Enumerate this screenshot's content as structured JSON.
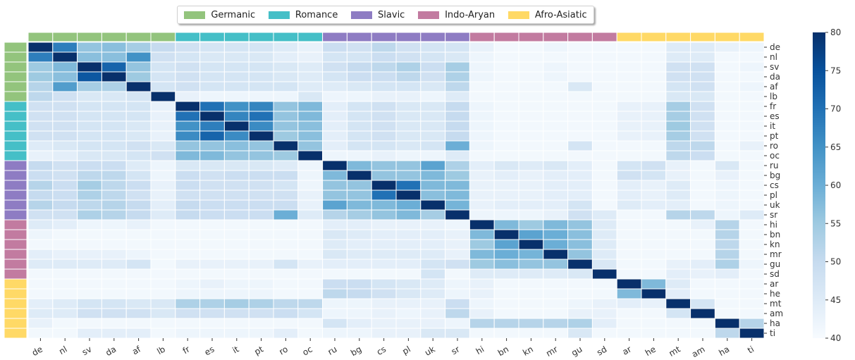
{
  "chart_data": {
    "type": "heatmap",
    "languages": [
      "de",
      "nl",
      "sv",
      "da",
      "af",
      "lb",
      "fr",
      "es",
      "it",
      "pt",
      "ro",
      "oc",
      "ru",
      "bg",
      "cs",
      "pl",
      "uk",
      "sr",
      "hi",
      "bn",
      "kn",
      "mr",
      "gu",
      "sd",
      "ar",
      "he",
      "mt",
      "am",
      "ha",
      "ti"
    ],
    "families": [
      {
        "name": "Germanic",
        "color": "#93c47d",
        "members": [
          "de",
          "nl",
          "sv",
          "da",
          "af",
          "lb"
        ]
      },
      {
        "name": "Romance",
        "color": "#45bfc7",
        "members": [
          "fr",
          "es",
          "it",
          "pt",
          "ro",
          "oc"
        ]
      },
      {
        "name": "Slavic",
        "color": "#8e7cc3",
        "members": [
          "ru",
          "bg",
          "cs",
          "pl",
          "uk",
          "sr"
        ]
      },
      {
        "name": "Indo-Aryan",
        "color": "#c27ba0",
        "members": [
          "hi",
          "bn",
          "kn",
          "mr",
          "gu",
          "sd"
        ]
      },
      {
        "name": "Afro-Asiatic",
        "color": "#ffd966",
        "members": [
          "ar",
          "he",
          "mt",
          "am",
          "ha",
          "ti"
        ]
      }
    ],
    "colorbar": {
      "min": 40,
      "max": 80,
      "ticks": [
        "40",
        "45",
        "50",
        "55",
        "60",
        "65",
        "70",
        "75",
        "80"
      ],
      "colormap": "Blues"
    },
    "values": [
      [
        80,
        68,
        56,
        57,
        54,
        50,
        48,
        47,
        47,
        47,
        45,
        43,
        49,
        48,
        51,
        48,
        47,
        47,
        43,
        41,
        41,
        42,
        41,
        41,
        41,
        41,
        45,
        45,
        43,
        42
      ],
      [
        68,
        80,
        57,
        57,
        65,
        48,
        47,
        46,
        46,
        46,
        44,
        43,
        47,
        47,
        49,
        48,
        47,
        46,
        42,
        41,
        41,
        41,
        41,
        41,
        41,
        41,
        45,
        45,
        41,
        41
      ],
      [
        55,
        58,
        80,
        72,
        56,
        47,
        48,
        47,
        47,
        47,
        46,
        45,
        48,
        50,
        51,
        53,
        49,
        54,
        42,
        41,
        41,
        42,
        41,
        41,
        41,
        41,
        48,
        48,
        41,
        42
      ],
      [
        55,
        57,
        74,
        80,
        55,
        47,
        48,
        47,
        47,
        47,
        46,
        45,
        47,
        49,
        49,
        51,
        48,
        53,
        42,
        41,
        41,
        42,
        41,
        41,
        41,
        41,
        48,
        48,
        41,
        41
      ],
      [
        52,
        63,
        54,
        53,
        80,
        47,
        48,
        47,
        47,
        47,
        47,
        45,
        45,
        46,
        47,
        47,
        46,
        51,
        41,
        41,
        41,
        41,
        46,
        41,
        41,
        41,
        47,
        48,
        41,
        42
      ],
      [
        51,
        48,
        46,
        46,
        47,
        80,
        43,
        42,
        42,
        42,
        42,
        46,
        42,
        42,
        43,
        43,
        42,
        45,
        41,
        41,
        41,
        41,
        41,
        41,
        41,
        41,
        46,
        46,
        41,
        41
      ],
      [
        48,
        48,
        47,
        47,
        47,
        43,
        80,
        70,
        65,
        67,
        56,
        58,
        44,
        47,
        48,
        46,
        46,
        50,
        42,
        41,
        41,
        41,
        41,
        41,
        43,
        43,
        54,
        48,
        41,
        41
      ],
      [
        48,
        48,
        47,
        47,
        47,
        43,
        70,
        80,
        67,
        70,
        56,
        58,
        44,
        47,
        48,
        46,
        46,
        50,
        42,
        41,
        41,
        41,
        41,
        41,
        43,
        43,
        54,
        48,
        41,
        41
      ],
      [
        48,
        48,
        47,
        47,
        46,
        43,
        65,
        68,
        80,
        66,
        56,
        57,
        44,
        47,
        48,
        46,
        46,
        50,
        42,
        41,
        41,
        41,
        41,
        41,
        43,
        43,
        55,
        48,
        41,
        41
      ],
      [
        48,
        48,
        47,
        47,
        46,
        43,
        66,
        72,
        66,
        80,
        55,
        57,
        44,
        47,
        48,
        46,
        46,
        50,
        42,
        41,
        41,
        41,
        41,
        41,
        43,
        43,
        54,
        48,
        41,
        41
      ],
      [
        45,
        46,
        47,
        47,
        48,
        46,
        56,
        56,
        57,
        56,
        80,
        56,
        44,
        47,
        47,
        46,
        47,
        60,
        42,
        41,
        41,
        41,
        47,
        41,
        41,
        41,
        51,
        51,
        41,
        43
      ],
      [
        43,
        44,
        46,
        46,
        47,
        48,
        58,
        58,
        56,
        56,
        55,
        80,
        42,
        42,
        43,
        42,
        42,
        45,
        41,
        41,
        41,
        41,
        41,
        41,
        41,
        41,
        51,
        49,
        41,
        41
      ],
      [
        50,
        48,
        49,
        49,
        45,
        42,
        46,
        46,
        46,
        46,
        45,
        42,
        80,
        58,
        56,
        56,
        62,
        53,
        44,
        46,
        45,
        46,
        44,
        41,
        47,
        48,
        43,
        41,
        46,
        41
      ],
      [
        49,
        48,
        51,
        51,
        47,
        42,
        49,
        48,
        49,
        49,
        49,
        42,
        58,
        80,
        56,
        56,
        58,
        55,
        43,
        44,
        43,
        44,
        44,
        41,
        48,
        47,
        43,
        41,
        43,
        41
      ],
      [
        52,
        49,
        54,
        51,
        49,
        43,
        49,
        48,
        48,
        48,
        47,
        42,
        56,
        56,
        80,
        70,
        58,
        58,
        43,
        43,
        43,
        44,
        44,
        41,
        44,
        43,
        45,
        41,
        42,
        41
      ],
      [
        50,
        49,
        53,
        51,
        48,
        43,
        48,
        48,
        48,
        48,
        48,
        43,
        56,
        56,
        70,
        80,
        57,
        58,
        43,
        43,
        43,
        44,
        44,
        41,
        44,
        43,
        45,
        41,
        42,
        41
      ],
      [
        52,
        50,
        51,
        52,
        50,
        44,
        50,
        49,
        49,
        49,
        49,
        43,
        62,
        58,
        58,
        60,
        80,
        59,
        43,
        44,
        44,
        44,
        47,
        41,
        45,
        44,
        44,
        41,
        42,
        41
      ],
      [
        48,
        48,
        53,
        52,
        50,
        45,
        50,
        49,
        49,
        49,
        60,
        45,
        52,
        54,
        56,
        58,
        54,
        80,
        42,
        42,
        42,
        43,
        48,
        45,
        41,
        41,
        52,
        51,
        42,
        45
      ],
      [
        45,
        44,
        42,
        42,
        43,
        41,
        41,
        41,
        41,
        41,
        41,
        41,
        44,
        44,
        43,
        43,
        43,
        42,
        80,
        58,
        55,
        58,
        56,
        45,
        41,
        41,
        41,
        43,
        52,
        41
      ],
      [
        42,
        41,
        41,
        41,
        41,
        41,
        41,
        41,
        41,
        41,
        41,
        41,
        46,
        45,
        44,
        44,
        44,
        43,
        58,
        80,
        62,
        60,
        57,
        45,
        41,
        41,
        41,
        41,
        52,
        41
      ],
      [
        41,
        41,
        41,
        41,
        41,
        41,
        41,
        41,
        41,
        41,
        41,
        41,
        45,
        44,
        44,
        44,
        44,
        43,
        55,
        62,
        80,
        60,
        57,
        45,
        41,
        41,
        41,
        41,
        51,
        41
      ],
      [
        44,
        43,
        43,
        43,
        42,
        41,
        41,
        41,
        41,
        41,
        41,
        41,
        46,
        45,
        45,
        45,
        45,
        43,
        58,
        60,
        59,
        80,
        56,
        45,
        41,
        41,
        41,
        41,
        52,
        41
      ],
      [
        45,
        45,
        45,
        45,
        47,
        41,
        43,
        43,
        43,
        43,
        47,
        43,
        44,
        44,
        44,
        44,
        47,
        48,
        55,
        57,
        56,
        56,
        80,
        46,
        41,
        41,
        43,
        44,
        53,
        42
      ],
      [
        41,
        41,
        41,
        41,
        41,
        41,
        41,
        41,
        41,
        41,
        41,
        41,
        41,
        41,
        41,
        41,
        47,
        41,
        45,
        45,
        45,
        45,
        46,
        80,
        41,
        41,
        44,
        43,
        44,
        41
      ],
      [
        41,
        41,
        41,
        41,
        41,
        41,
        42,
        43,
        42,
        42,
        41,
        41,
        49,
        49,
        47,
        46,
        45,
        42,
        43,
        41,
        41,
        41,
        41,
        41,
        80,
        58,
        45,
        41,
        41,
        41
      ],
      [
        41,
        41,
        41,
        41,
        41,
        41,
        42,
        42,
        42,
        42,
        41,
        41,
        51,
        50,
        48,
        46,
        45,
        42,
        43,
        41,
        41,
        41,
        41,
        41,
        58,
        80,
        44,
        41,
        41,
        41
      ],
      [
        44,
        45,
        47,
        47,
        46,
        46,
        53,
        53,
        54,
        53,
        51,
        51,
        42,
        42,
        43,
        43,
        43,
        49,
        42,
        41,
        41,
        41,
        42,
        43,
        44,
        43,
        80,
        47,
        41,
        41
      ],
      [
        45,
        45,
        48,
        48,
        48,
        46,
        48,
        48,
        48,
        48,
        49,
        47,
        42,
        42,
        43,
        42,
        43,
        51,
        43,
        41,
        41,
        41,
        43,
        43,
        41,
        41,
        47,
        80,
        41,
        41
      ],
      [
        43,
        41,
        41,
        41,
        41,
        41,
        41,
        41,
        41,
        41,
        41,
        41,
        47,
        44,
        43,
        43,
        43,
        42,
        52,
        52,
        52,
        52,
        53,
        44,
        41,
        41,
        41,
        41,
        80,
        52
      ],
      [
        41,
        41,
        44,
        44,
        44,
        41,
        42,
        42,
        42,
        42,
        44,
        41,
        42,
        42,
        43,
        43,
        46,
        46,
        41,
        41,
        41,
        41,
        46,
        41,
        41,
        41,
        41,
        41,
        51,
        80
      ]
    ]
  }
}
